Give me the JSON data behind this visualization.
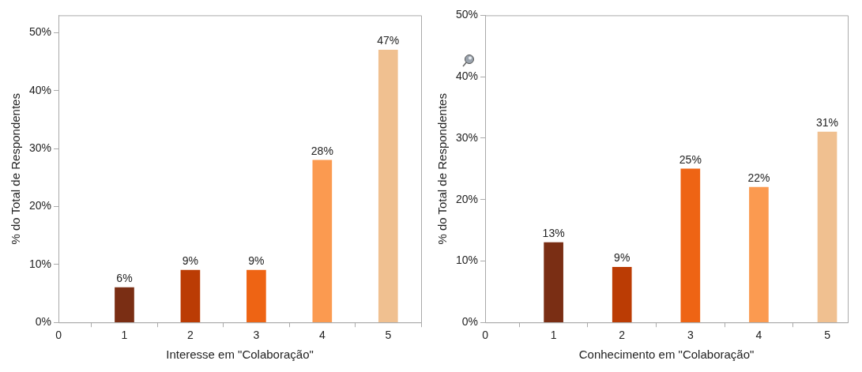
{
  "chart_data": [
    {
      "type": "bar",
      "xlabel": "Interesse em \"Colaboração\"",
      "ylabel": "% do Total de Respondentes",
      "x": [
        1,
        2,
        3,
        4,
        5
      ],
      "values": [
        6,
        9,
        9,
        28,
        47
      ],
      "value_labels": [
        "6%",
        "9%",
        "9%",
        "28%",
        "47%"
      ],
      "colors": [
        "#7a2e14",
        "#bb3c04",
        "#ee6414",
        "#fb9a50",
        "#f0c090"
      ],
      "xlim": [
        0,
        5.5
      ],
      "xticks": [
        0,
        1,
        2,
        3,
        4,
        5
      ],
      "ylim": [
        0,
        53
      ],
      "yticks": [
        {
          "value": 0,
          "label": "0%"
        },
        {
          "value": 10,
          "label": "10%"
        },
        {
          "value": 20,
          "label": "20%"
        },
        {
          "value": 30,
          "label": "30%"
        },
        {
          "value": 40,
          "label": "40%"
        },
        {
          "value": 50,
          "label": "50%"
        }
      ]
    },
    {
      "type": "bar",
      "xlabel": "Conhecimento em \"Colaboração\"",
      "ylabel": "% do Total de Respondentes",
      "x": [
        1,
        2,
        3,
        4,
        5
      ],
      "values": [
        13,
        9,
        25,
        22,
        31
      ],
      "value_labels": [
        "13%",
        "9%",
        "25%",
        "22%",
        "31%"
      ],
      "colors": [
        "#7a2e14",
        "#bb3c04",
        "#ee6414",
        "#fb9a50",
        "#f0c090"
      ],
      "xlim": [
        0,
        5.3
      ],
      "xticks": [
        0,
        1,
        2,
        3,
        4,
        5
      ],
      "ylim": [
        0,
        50
      ],
      "yticks": [
        {
          "value": 0,
          "label": "0%"
        },
        {
          "value": 10,
          "label": "10%"
        },
        {
          "value": 20,
          "label": "20%"
        },
        {
          "value": 30,
          "label": "30%"
        },
        {
          "value": 40,
          "label": "40%"
        },
        {
          "value": 50,
          "label": "50%"
        }
      ]
    }
  ]
}
